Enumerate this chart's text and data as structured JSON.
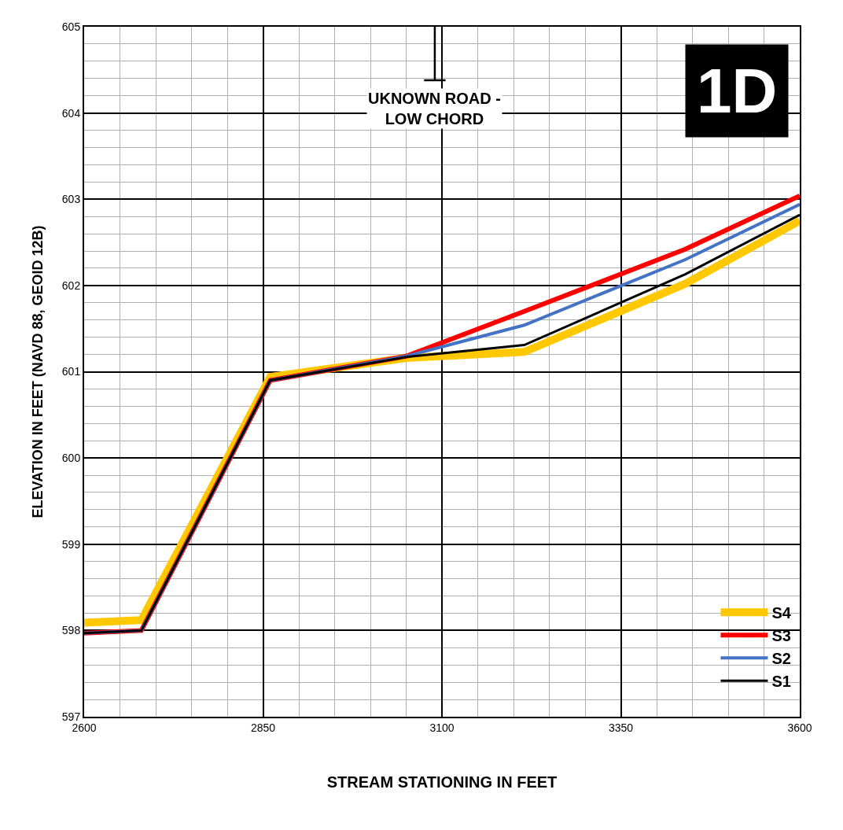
{
  "chart_data": {
    "type": "line",
    "xlabel": "STREAM STATIONING IN FEET",
    "ylabel": "ELEVATION IN FEET (NAVD 88, GEOID 12B)",
    "xlim": [
      2600,
      3600
    ],
    "xticks": [
      2600,
      2850,
      3100,
      3350,
      3600
    ],
    "ylim": [
      597,
      605
    ],
    "yticks": [
      597,
      598,
      599,
      600,
      601,
      602,
      603,
      604,
      605
    ],
    "grid": true,
    "legend": "bottom right",
    "marker": "none",
    "line_style": "solid",
    "annotations": [
      "UKNOWN ROAD -\nLOW CHORD",
      "1D"
    ],
    "series": [
      {
        "name": "S4",
        "color": "#ffc800",
        "x": [
          2600,
          2680,
          2860,
          3050,
          3215,
          3440,
          3600
        ],
        "values": [
          598.09,
          598.12,
          600.94,
          601.16,
          601.23,
          602.02,
          602.75
        ]
      },
      {
        "name": "S3",
        "color": "#ff0000",
        "x": [
          2600,
          2680,
          2860,
          3050,
          3215,
          3440,
          3600
        ],
        "values": [
          597.97,
          598.0,
          600.9,
          601.18,
          601.7,
          602.42,
          603.04
        ]
      },
      {
        "name": "S2",
        "color": "#4472c4",
        "x": [
          2600,
          2680,
          2860,
          3050,
          3215,
          3440,
          3600
        ],
        "values": [
          597.97,
          598.0,
          600.9,
          601.18,
          601.54,
          602.3,
          602.94
        ]
      },
      {
        "name": "S1",
        "color": "#000000",
        "x": [
          2600,
          2680,
          2860,
          3050,
          3215,
          3440,
          3600
        ],
        "values": [
          597.97,
          598.0,
          600.9,
          601.17,
          601.31,
          602.13,
          602.82
        ]
      },
      {
        "color": "#000000",
        "x": [
          3090,
          3090,
          3075,
          3105
        ],
        "values": [
          605,
          604.38,
          604.38,
          604.38
        ]
      }
    ]
  }
}
